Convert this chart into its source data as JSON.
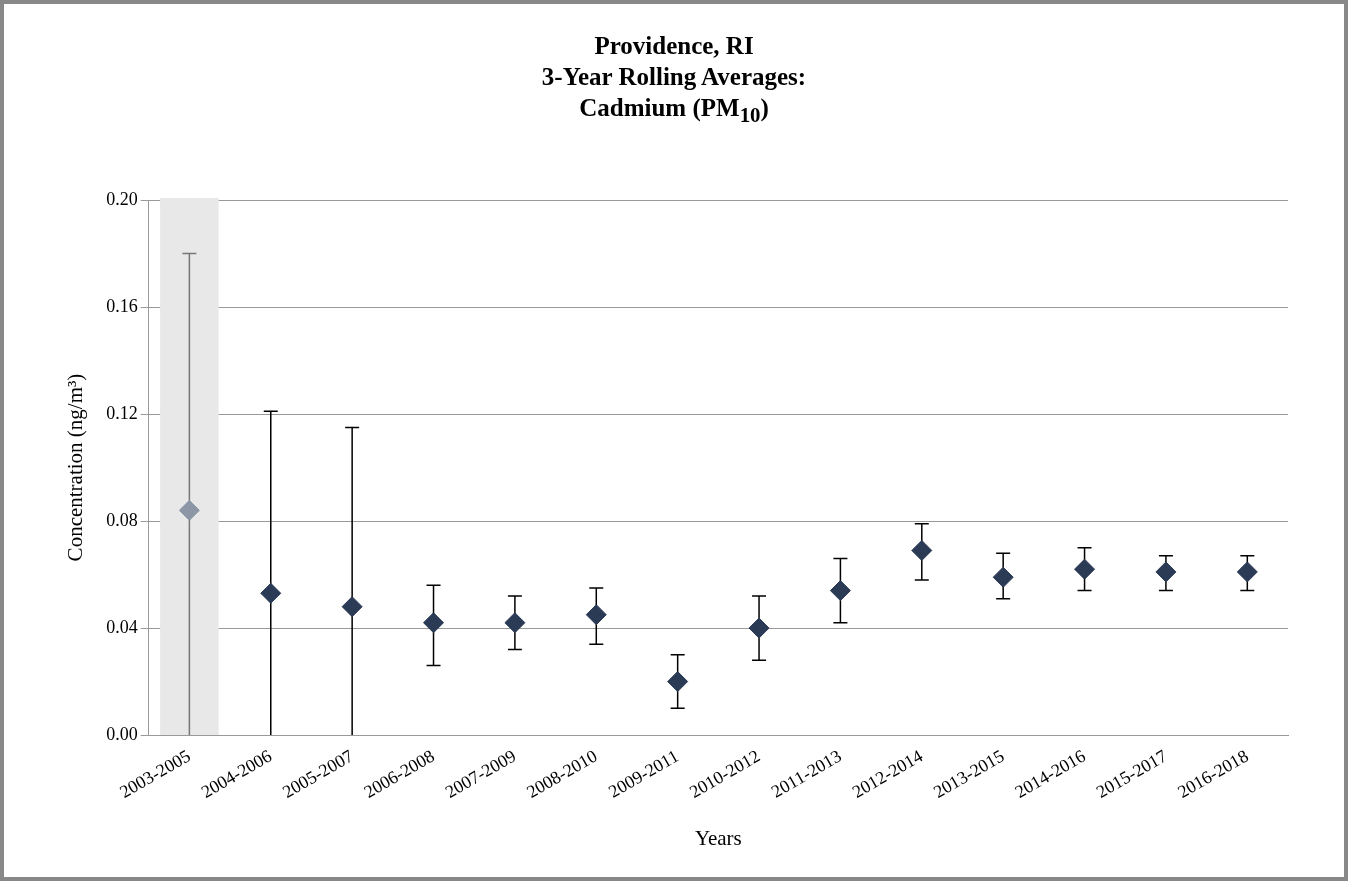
{
  "chart_data": {
    "type": "scatter",
    "title": "Providence, RI\n3-Year Rolling Averages:\nCadmium (PM$_{10}$)",
    "xlabel": "Years",
    "ylabel": "Concentration (ng/m³)",
    "categories": [
      "2003-2005",
      "2004-2006",
      "2005-2007",
      "2006-2008",
      "2007-2009",
      "2008-2010",
      "2009-2011",
      "2010-2012",
      "2011-2013",
      "2012-2014",
      "2013-2015",
      "2014-2016",
      "2015-2017",
      "2016-2018"
    ],
    "values": [
      0.084,
      0.053,
      0.048,
      0.042,
      0.042,
      0.045,
      0.02,
      0.04,
      0.054,
      0.069,
      0.059,
      0.062,
      0.061,
      0.061
    ],
    "errors": [
      [
        0,
        0.18
      ],
      [
        0,
        0.121
      ],
      [
        0,
        0.115
      ],
      [
        0.026,
        0.056
      ],
      [
        0.032,
        0.052
      ],
      [
        0.034,
        0.055
      ],
      [
        0.01,
        0.03
      ],
      [
        0.028,
        0.052
      ],
      [
        0.042,
        0.066
      ],
      [
        0.058,
        0.079
      ],
      [
        0.051,
        0.068
      ],
      [
        0.054,
        0.07
      ],
      [
        0.054,
        0.067
      ],
      [
        0.054,
        0.067
      ]
    ],
    "colors": [
      "#8c96a6",
      "#2b3a55",
      "#2b3a55",
      "#2b3a55",
      "#2b3a55",
      "#2b3a55",
      "#2b3a55",
      "#2b3a55",
      "#2b3a55",
      "#2b3a55",
      "#2b3a55",
      "#2b3a55",
      "#2b3a55",
      "#2b3a55"
    ],
    "bands": [
      {
        "axis": "x",
        "from": "2003-2005",
        "to": "2003-2005",
        "color": "#e8e8e8"
      }
    ],
    "ylim": [
      0,
      0.2
    ],
    "yticks": [
      {
        "value": 0,
        "label": "0.00"
      },
      {
        "value": 0.04,
        "label": "0.04"
      },
      {
        "value": 0.08,
        "label": "0.08"
      },
      {
        "value": 0.12,
        "label": "0.12"
      },
      {
        "value": 0.16,
        "label": "0.16"
      },
      {
        "value": 0.2,
        "label": "0.20"
      }
    ],
    "grid": "y",
    "legend": false,
    "marker": "diamond"
  }
}
